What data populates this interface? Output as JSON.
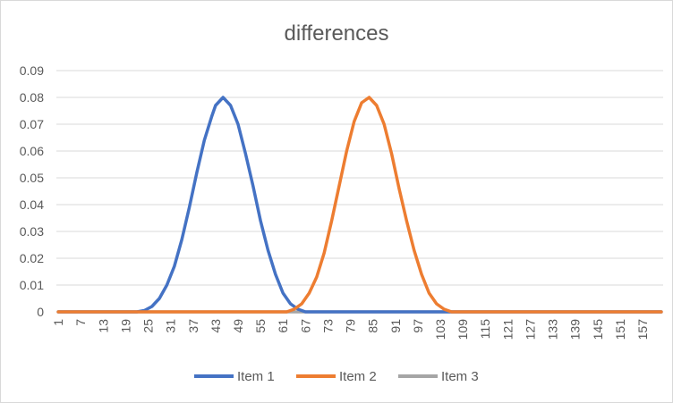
{
  "chart_data": {
    "type": "line",
    "title": "differences",
    "xlabel": "",
    "ylabel": "",
    "x_start": 1,
    "x_end": 162,
    "x_tick_labels": [
      "1",
      "7",
      "13",
      "19",
      "25",
      "31",
      "37",
      "43",
      "49",
      "55",
      "61",
      "67",
      "73",
      "79",
      "85",
      "91",
      "97",
      "103",
      "109",
      "115",
      "121",
      "127",
      "133",
      "139",
      "145",
      "151",
      "157"
    ],
    "ylim": [
      0,
      0.09
    ],
    "y_tick_labels": [
      "0",
      "0.01",
      "0.02",
      "0.03",
      "0.04",
      "0.05",
      "0.06",
      "0.07",
      "0.08",
      "0.09"
    ],
    "grid": true,
    "legend_position": "bottom",
    "series": [
      {
        "name": "Item 1",
        "color": "#4472C4",
        "points": [
          [
            1,
            0
          ],
          [
            22,
            0
          ],
          [
            24,
            0.0005
          ],
          [
            26,
            0.002
          ],
          [
            28,
            0.005
          ],
          [
            30,
            0.01
          ],
          [
            32,
            0.017
          ],
          [
            34,
            0.027
          ],
          [
            36,
            0.039
          ],
          [
            38,
            0.052
          ],
          [
            40,
            0.064
          ],
          [
            42,
            0.073
          ],
          [
            43,
            0.077
          ],
          [
            45,
            0.08
          ],
          [
            47,
            0.077
          ],
          [
            49,
            0.07
          ],
          [
            51,
            0.059
          ],
          [
            53,
            0.047
          ],
          [
            55,
            0.034
          ],
          [
            57,
            0.023
          ],
          [
            59,
            0.014
          ],
          [
            61,
            0.007
          ],
          [
            63,
            0.003
          ],
          [
            65,
            0.001
          ],
          [
            67,
            0
          ],
          [
            162,
            0
          ]
        ]
      },
      {
        "name": "Item 2",
        "color": "#ED7D31",
        "points": [
          [
            1,
            0
          ],
          [
            62,
            0
          ],
          [
            64,
            0.001
          ],
          [
            66,
            0.003
          ],
          [
            68,
            0.007
          ],
          [
            70,
            0.013
          ],
          [
            72,
            0.022
          ],
          [
            74,
            0.034
          ],
          [
            76,
            0.047
          ],
          [
            78,
            0.06
          ],
          [
            80,
            0.071
          ],
          [
            82,
            0.078
          ],
          [
            84,
            0.08
          ],
          [
            86,
            0.077
          ],
          [
            88,
            0.07
          ],
          [
            90,
            0.059
          ],
          [
            92,
            0.046
          ],
          [
            94,
            0.034
          ],
          [
            96,
            0.023
          ],
          [
            98,
            0.014
          ],
          [
            100,
            0.007
          ],
          [
            102,
            0.003
          ],
          [
            104,
            0.001
          ],
          [
            106,
            0
          ],
          [
            162,
            0
          ]
        ]
      },
      {
        "name": "Item 3",
        "color": "#A5A5A5",
        "points": [
          [
            1,
            0
          ],
          [
            162,
            0
          ]
        ]
      }
    ]
  }
}
